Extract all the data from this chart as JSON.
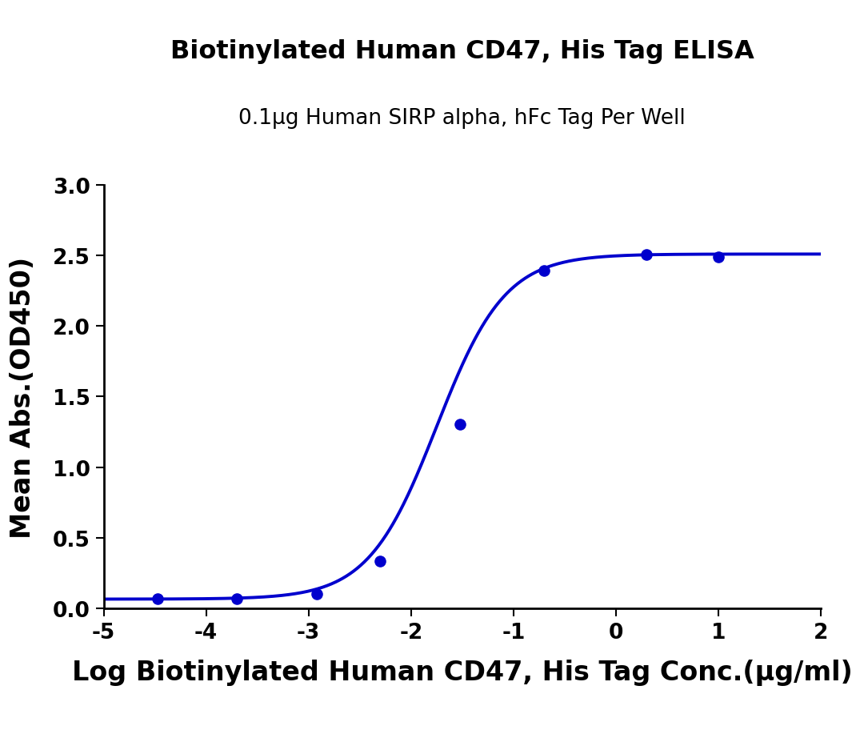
{
  "title": "Biotinylated Human CD47, His Tag ELISA",
  "subtitle": "0.1μg Human SIRP alpha, hFc Tag Per Well",
  "xlabel": "Log Biotinylated Human CD47, His Tag Conc.(μg/ml)",
  "ylabel": "Mean Abs.(OD450)",
  "curve_color": "#0000cd",
  "marker_color": "#0000cd",
  "data_points_x": [
    -4.477,
    -3.699,
    -2.921,
    -2.301,
    -1.523,
    -0.699,
    0.301,
    1.0
  ],
  "data_points_y": [
    0.065,
    0.068,
    0.1,
    0.335,
    1.305,
    2.395,
    2.505,
    2.49
  ],
  "xlim": [
    -5,
    2
  ],
  "ylim": [
    0.0,
    3.0
  ],
  "xticks": [
    -5,
    -4,
    -3,
    -2,
    -1,
    0,
    1,
    2
  ],
  "yticks": [
    0.0,
    0.5,
    1.0,
    1.5,
    2.0,
    2.5,
    3.0
  ],
  "title_fontsize": 23,
  "subtitle_fontsize": 19,
  "axis_label_fontsize": 24,
  "tick_fontsize": 19,
  "background_color": "#ffffff",
  "line_width": 2.8,
  "marker_size": 9
}
